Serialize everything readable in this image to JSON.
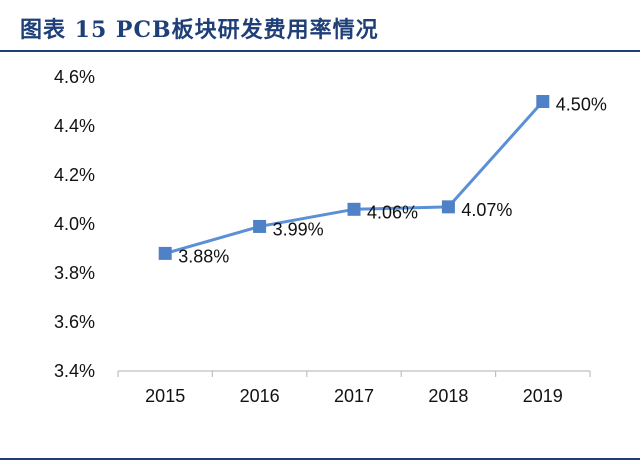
{
  "figure": {
    "title": "图表 15 PCB板块研发费用率情况"
  },
  "chart_data": {
    "type": "line",
    "title": "",
    "xlabel": "",
    "ylabel": "",
    "categories": [
      "2015",
      "2016",
      "2017",
      "2018",
      "2019"
    ],
    "series": [
      {
        "name": "",
        "values": [
          3.88,
          3.99,
          4.06,
          4.07,
          4.5
        ],
        "labels": [
          "3.88%",
          "3.99%",
          "4.06%",
          "4.07%",
          "4.50%"
        ],
        "color": "#4f81c7",
        "line_color": "#5b8fd6"
      }
    ],
    "ylim": [
      3.4,
      4.6
    ],
    "yticks": [
      3.4,
      3.6,
      3.8,
      4.0,
      4.2,
      4.4,
      4.6
    ],
    "ytick_labels": [
      "3.4%",
      "3.6%",
      "3.8%",
      "4.0%",
      "4.2%",
      "4.4%",
      "4.6%"
    ],
    "grid": false,
    "legend": "none"
  },
  "colors": {
    "title": "#1f3f78",
    "rule": "#1f3f78",
    "axis": "#bfbfbf"
  }
}
